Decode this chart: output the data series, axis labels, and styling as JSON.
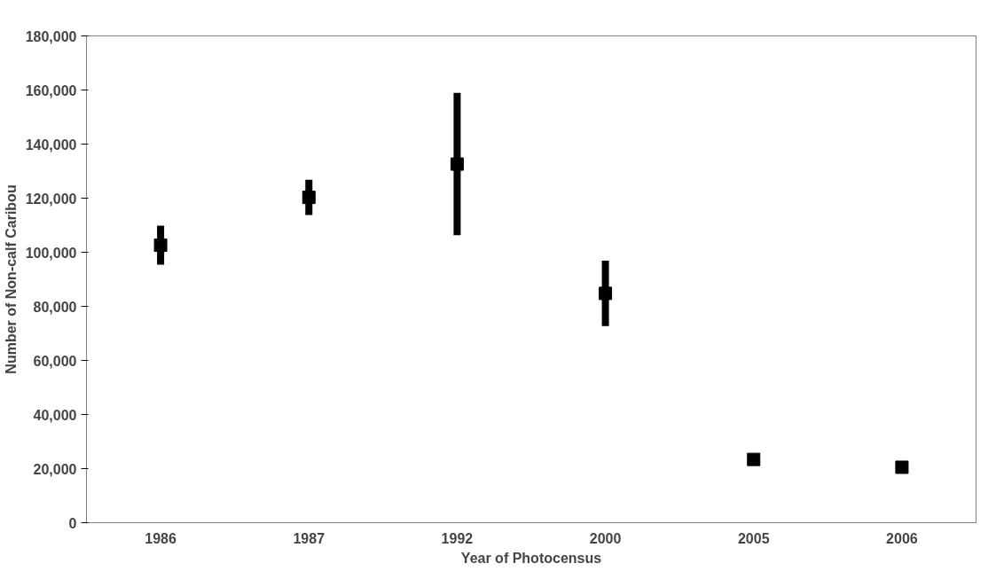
{
  "chart_data": {
    "type": "scatter",
    "xlabel": "Year of Photocensus",
    "ylabel": "Number of Non-calf Caribou",
    "categories": [
      "1986",
      "1987",
      "1992",
      "2000",
      "2005",
      "2006"
    ],
    "series": [
      {
        "color": "#000000",
        "values": [
          102600,
          120300,
          132600,
          84800,
          23400,
          20500
        ],
        "errors": [
          7200,
          6500,
          26300,
          12100,
          null,
          null
        ]
      }
    ],
    "ylim": [
      0,
      180000
    ],
    "yticks": [
      {
        "value": 0,
        "label": "0"
      },
      {
        "value": 20000,
        "label": "20,000"
      },
      {
        "value": 40000,
        "label": "40,000"
      },
      {
        "value": 60000,
        "label": "60,000"
      },
      {
        "value": 80000,
        "label": "80,000"
      },
      {
        "value": 100000,
        "label": "100,000"
      },
      {
        "value": 120000,
        "label": "120,000"
      },
      {
        "value": 140000,
        "label": "140,000"
      },
      {
        "value": 160000,
        "label": "160,000"
      },
      {
        "value": 180000,
        "label": "180,000"
      }
    ],
    "grid": false,
    "marker": "square"
  }
}
